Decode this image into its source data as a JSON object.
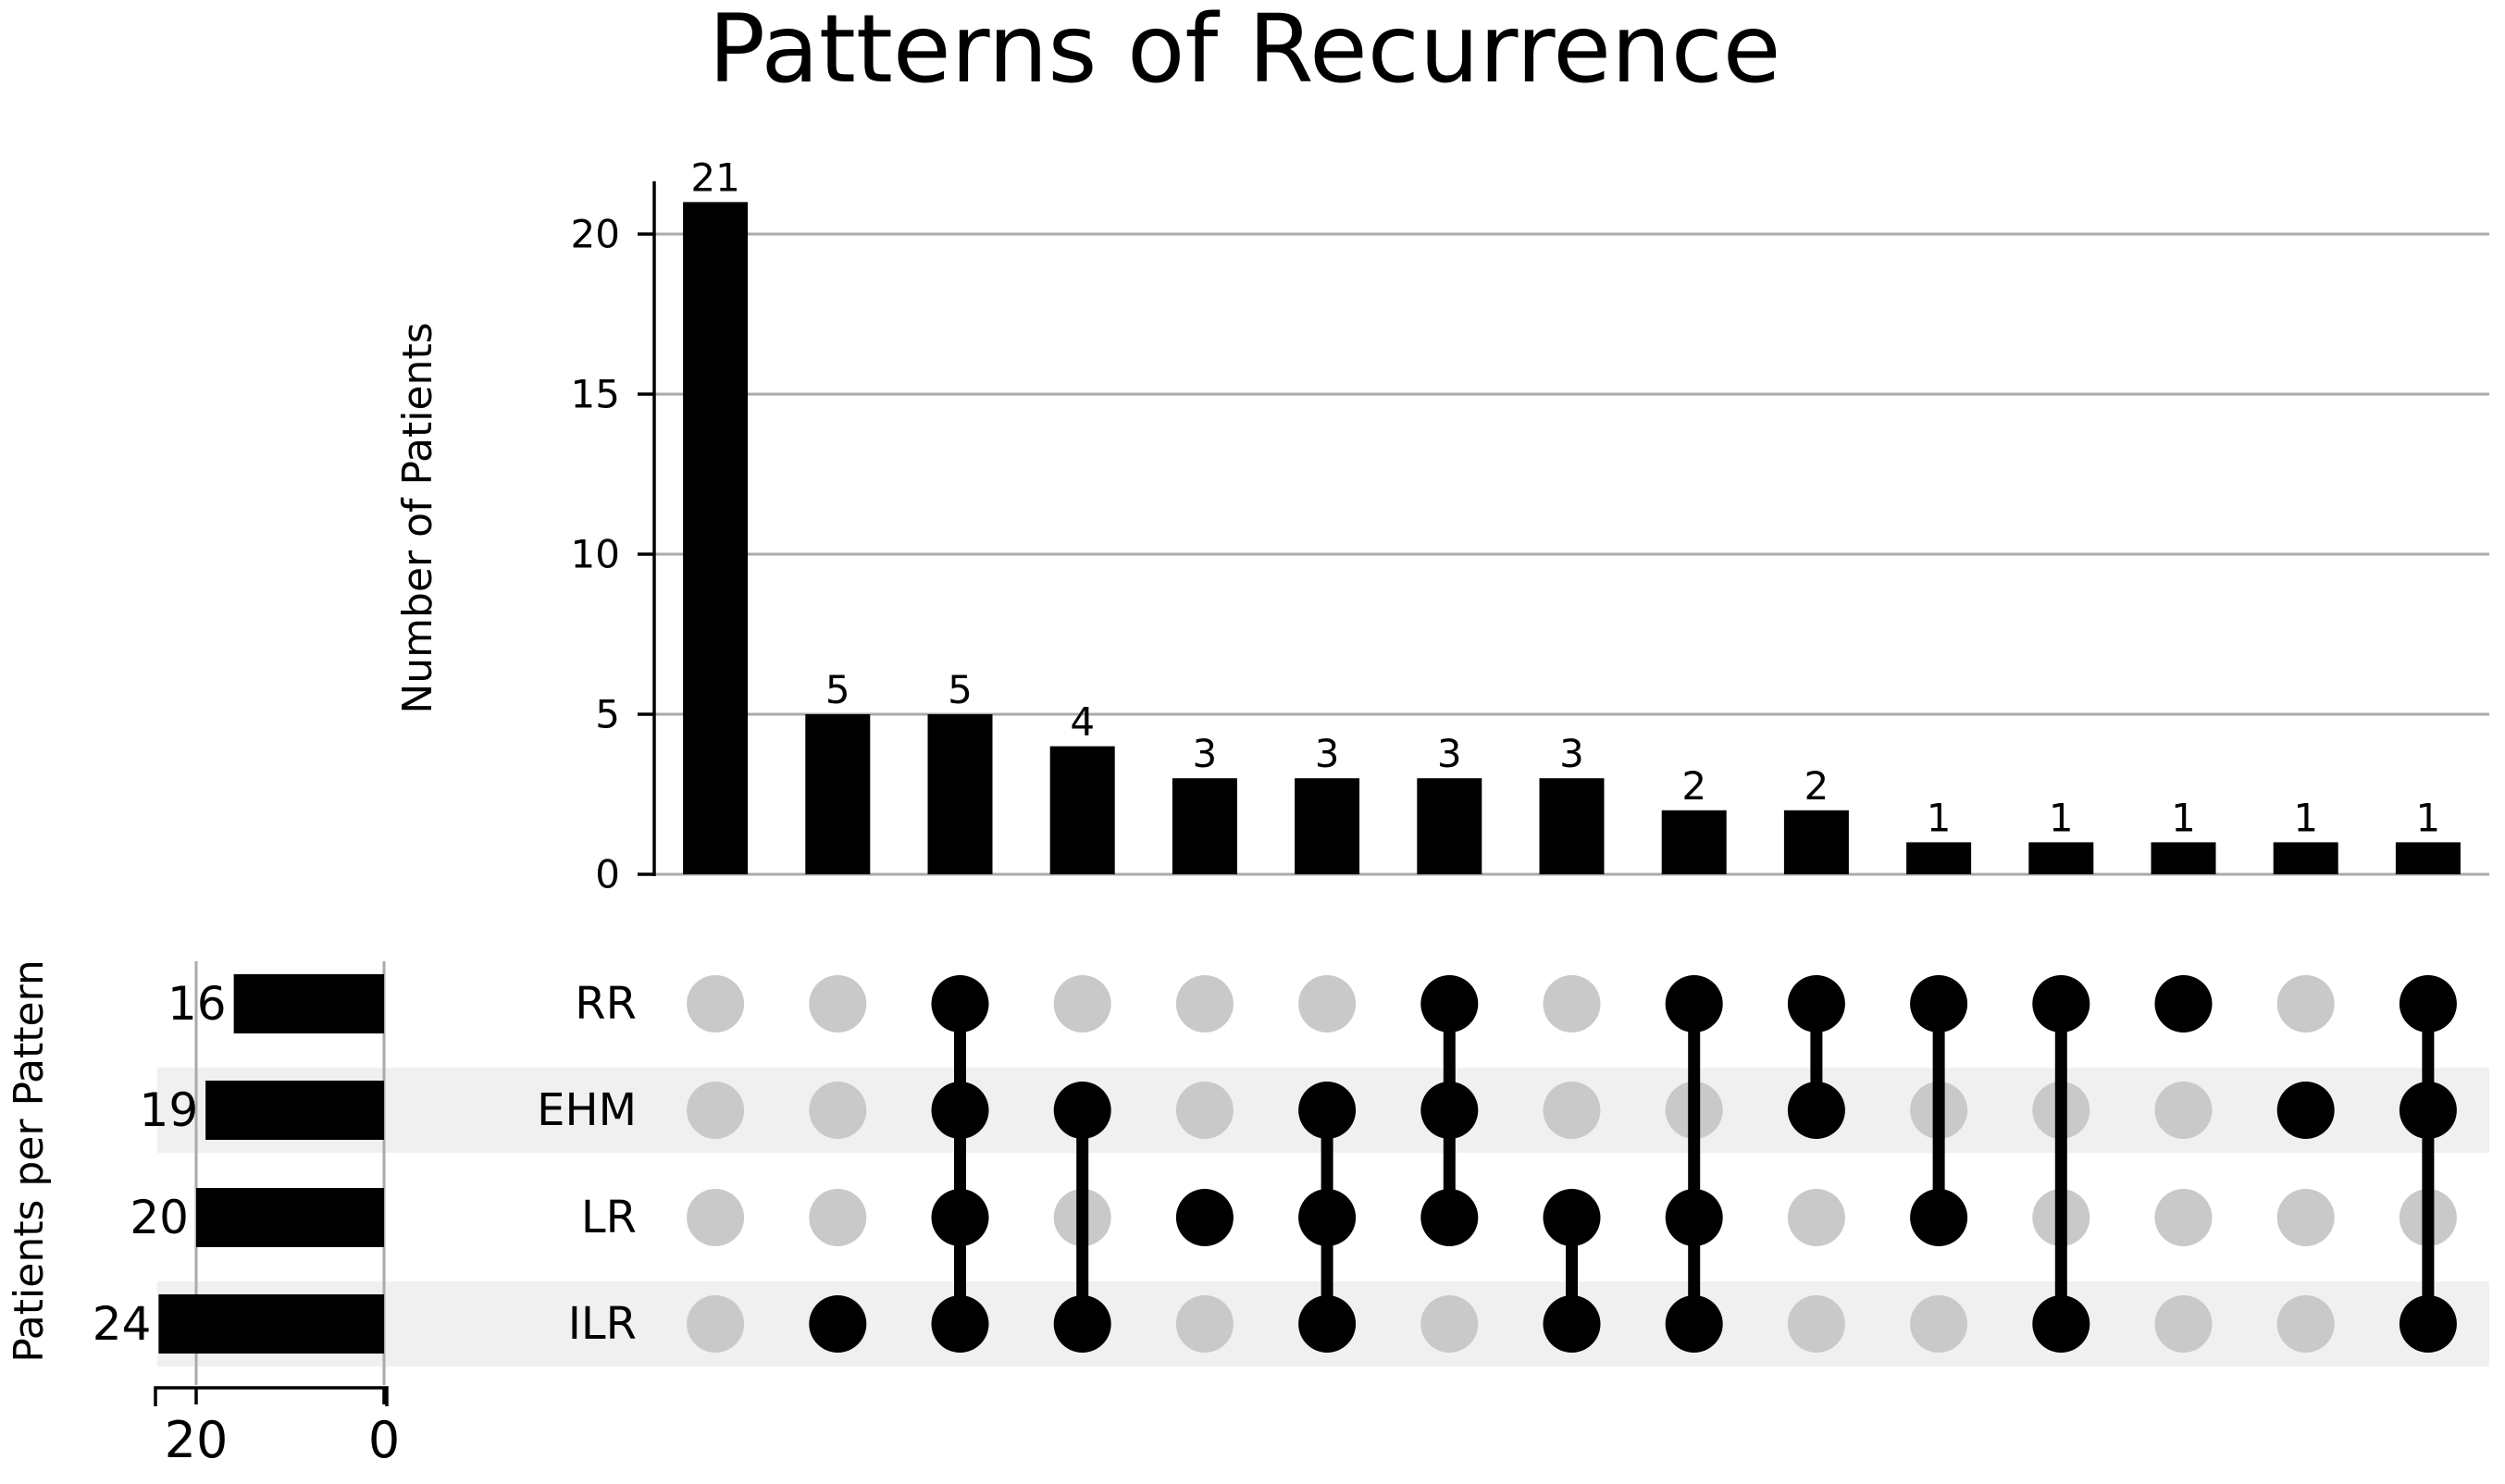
{
  "title": "Patterns of Recurrence",
  "colors": {
    "bar": "#000000",
    "dot_inactive": "#c9c9c9",
    "band": "#f0f0f0",
    "gridline": "#aaaaaa",
    "axis": "#000000"
  },
  "chart_data": {
    "type": "upset",
    "title": "Patterns of Recurrence",
    "intersection_axis": {
      "label": "Number of Patients",
      "ticks": [
        0,
        5,
        10,
        15,
        20
      ],
      "ylim": [
        0,
        21.7
      ],
      "grid": true
    },
    "set_axis": {
      "label": "Patients per Pattern",
      "ticks": [
        20,
        0
      ],
      "xlim": [
        24.3,
        0
      ]
    },
    "sets": [
      {
        "name": "RR",
        "size": 16
      },
      {
        "name": "EHM",
        "size": 19
      },
      {
        "name": "LR",
        "size": 20
      },
      {
        "name": "ILR",
        "size": 24
      }
    ],
    "intersections": [
      {
        "sets": [],
        "value": 21
      },
      {
        "sets": [
          "ILR"
        ],
        "value": 5
      },
      {
        "sets": [
          "RR",
          "EHM",
          "LR",
          "ILR"
        ],
        "value": 5
      },
      {
        "sets": [
          "EHM",
          "ILR"
        ],
        "value": 4
      },
      {
        "sets": [
          "LR"
        ],
        "value": 3
      },
      {
        "sets": [
          "EHM",
          "LR",
          "ILR"
        ],
        "value": 3
      },
      {
        "sets": [
          "RR",
          "EHM",
          "LR"
        ],
        "value": 3
      },
      {
        "sets": [
          "LR",
          "ILR"
        ],
        "value": 3
      },
      {
        "sets": [
          "RR",
          "LR",
          "ILR"
        ],
        "value": 2
      },
      {
        "sets": [
          "RR",
          "EHM"
        ],
        "value": 2
      },
      {
        "sets": [
          "RR",
          "LR"
        ],
        "value": 1
      },
      {
        "sets": [
          "RR",
          "ILR"
        ],
        "value": 1
      },
      {
        "sets": [
          "RR"
        ],
        "value": 1
      },
      {
        "sets": [
          "EHM"
        ],
        "value": 1
      },
      {
        "sets": [
          "RR",
          "EHM",
          "ILR"
        ],
        "value": 1
      }
    ]
  }
}
